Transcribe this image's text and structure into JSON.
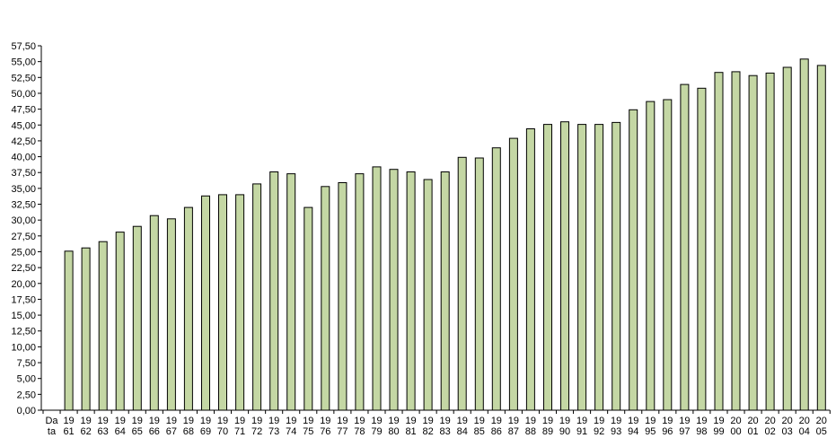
{
  "chart_data": {
    "type": "bar",
    "title": "",
    "xlabel": "",
    "ylabel": "",
    "ylim": [
      0,
      57.5
    ],
    "ytick_step": 2.5,
    "ytick_labels": [
      "0,00",
      "2,50",
      "5,00",
      "7,50",
      "10,00",
      "12,50",
      "15,00",
      "17,50",
      "20,00",
      "22,50",
      "25,00",
      "27,50",
      "30,00",
      "32,50",
      "35,00",
      "37,50",
      "40,00",
      "42,50",
      "45,00",
      "47,50",
      "50,00",
      "52,50",
      "55,00",
      "57,50"
    ],
    "grid": false,
    "legend": "none",
    "bar_color": "#c4d7a4",
    "first_category_label": [
      "Da",
      "ta"
    ],
    "categories": [
      "1961",
      "1962",
      "1963",
      "1964",
      "1965",
      "1966",
      "1967",
      "1968",
      "1969",
      "1970",
      "1971",
      "1972",
      "1973",
      "1974",
      "1975",
      "1976",
      "1977",
      "1978",
      "1979",
      "1980",
      "1981",
      "1982",
      "1983",
      "1984",
      "1985",
      "1986",
      "1987",
      "1988",
      "1989",
      "1990",
      "1991",
      "1992",
      "1993",
      "1994",
      "1995",
      "1996",
      "1997",
      "1998",
      "1999",
      "2000",
      "2001",
      "2002",
      "2003",
      "2004",
      "2005"
    ],
    "values": [
      25.1,
      25.6,
      26.6,
      28.1,
      29.0,
      30.7,
      30.2,
      32.0,
      33.8,
      34.0,
      34.0,
      35.7,
      37.6,
      37.3,
      32.0,
      35.3,
      35.9,
      37.3,
      38.4,
      38.0,
      37.6,
      36.4,
      37.6,
      39.9,
      39.8,
      41.4,
      42.9,
      44.4,
      45.1,
      45.5,
      45.1,
      45.1,
      45.4,
      47.4,
      48.7,
      49.0,
      51.4,
      50.8,
      53.3,
      53.4,
      52.8,
      53.2,
      54.1,
      55.4,
      54.4
    ]
  }
}
